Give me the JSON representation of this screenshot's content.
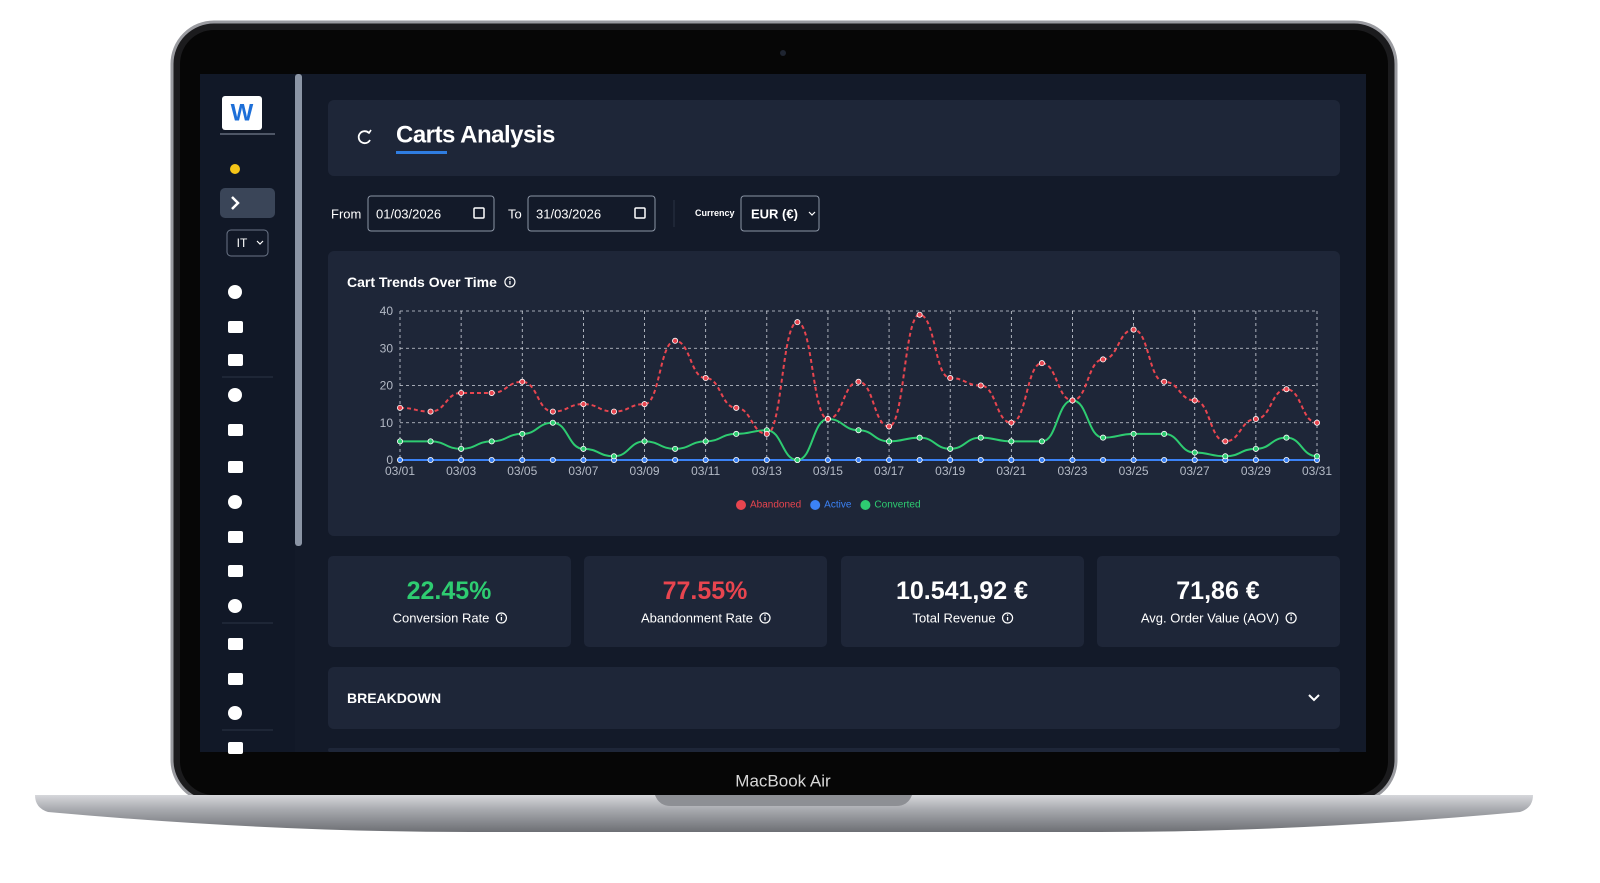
{
  "device": {
    "label": "MacBook Air"
  },
  "sidebar": {
    "logo": "W",
    "language": "IT"
  },
  "header": {
    "title": "Carts Analysis"
  },
  "filters": {
    "from_label": "From",
    "from_value": "01/03/2026",
    "to_label": "To",
    "to_value": "31/03/2026",
    "currency_label": "Currency",
    "currency_value": "EUR (€)"
  },
  "chart_data": {
    "type": "line",
    "title": "Cart Trends Over Time",
    "categories": [
      "03/01",
      null,
      "03/03",
      null,
      "03/05",
      null,
      "03/07",
      null,
      "03/09",
      null,
      "03/11",
      null,
      "03/13",
      null,
      "03/15",
      null,
      "03/17",
      null,
      "03/19",
      null,
      "03/21",
      null,
      "03/23",
      null,
      "03/25",
      null,
      "03/27",
      null,
      "03/29",
      null,
      "03/31"
    ],
    "series": [
      {
        "name": "Abandoned",
        "color": "#e8454f",
        "line_style": "dashed",
        "values": [
          14,
          13,
          18,
          18,
          21,
          13,
          15,
          13,
          15,
          32,
          22,
          14,
          7,
          37,
          11,
          21,
          9,
          39,
          22,
          20,
          10,
          26,
          16,
          27,
          35,
          21,
          16,
          5,
          11,
          19,
          10
        ]
      },
      {
        "name": "Active",
        "color": "#3b82f6",
        "line_style": "solid",
        "values": [
          0,
          0,
          0,
          0,
          0,
          0,
          0,
          0,
          0,
          0,
          0,
          0,
          0,
          0,
          0,
          0,
          0,
          0,
          0,
          0,
          0,
          0,
          0,
          0,
          0,
          0,
          0,
          0,
          0,
          0,
          0
        ]
      },
      {
        "name": "Converted",
        "color": "#2ecc71",
        "line_style": "solid",
        "values": [
          5,
          5,
          3,
          5,
          7,
          10,
          3,
          1,
          5,
          3,
          5,
          7,
          8,
          0,
          11,
          8,
          5,
          6,
          3,
          6,
          5,
          5,
          16,
          6,
          7,
          7,
          2,
          1,
          3,
          6,
          1
        ]
      }
    ],
    "ylim": [
      0,
      40
    ],
    "yticks": [
      0,
      10,
      20,
      30,
      40
    ],
    "grid": true,
    "legend": "bottom"
  },
  "kpis": [
    {
      "value": "22.45%",
      "label": "Conversion Rate",
      "color": "#2ecc71"
    },
    {
      "value": "77.55%",
      "label": "Abandonment Rate",
      "color": "#e8454f"
    },
    {
      "value": "10.541,92 €",
      "label": "Total Revenue",
      "color": "#ffffff"
    },
    {
      "value": "71,86 €",
      "label": "Avg. Order Value (AOV)",
      "color": "#ffffff"
    }
  ],
  "breakdown": {
    "title": "BREAKDOWN"
  }
}
